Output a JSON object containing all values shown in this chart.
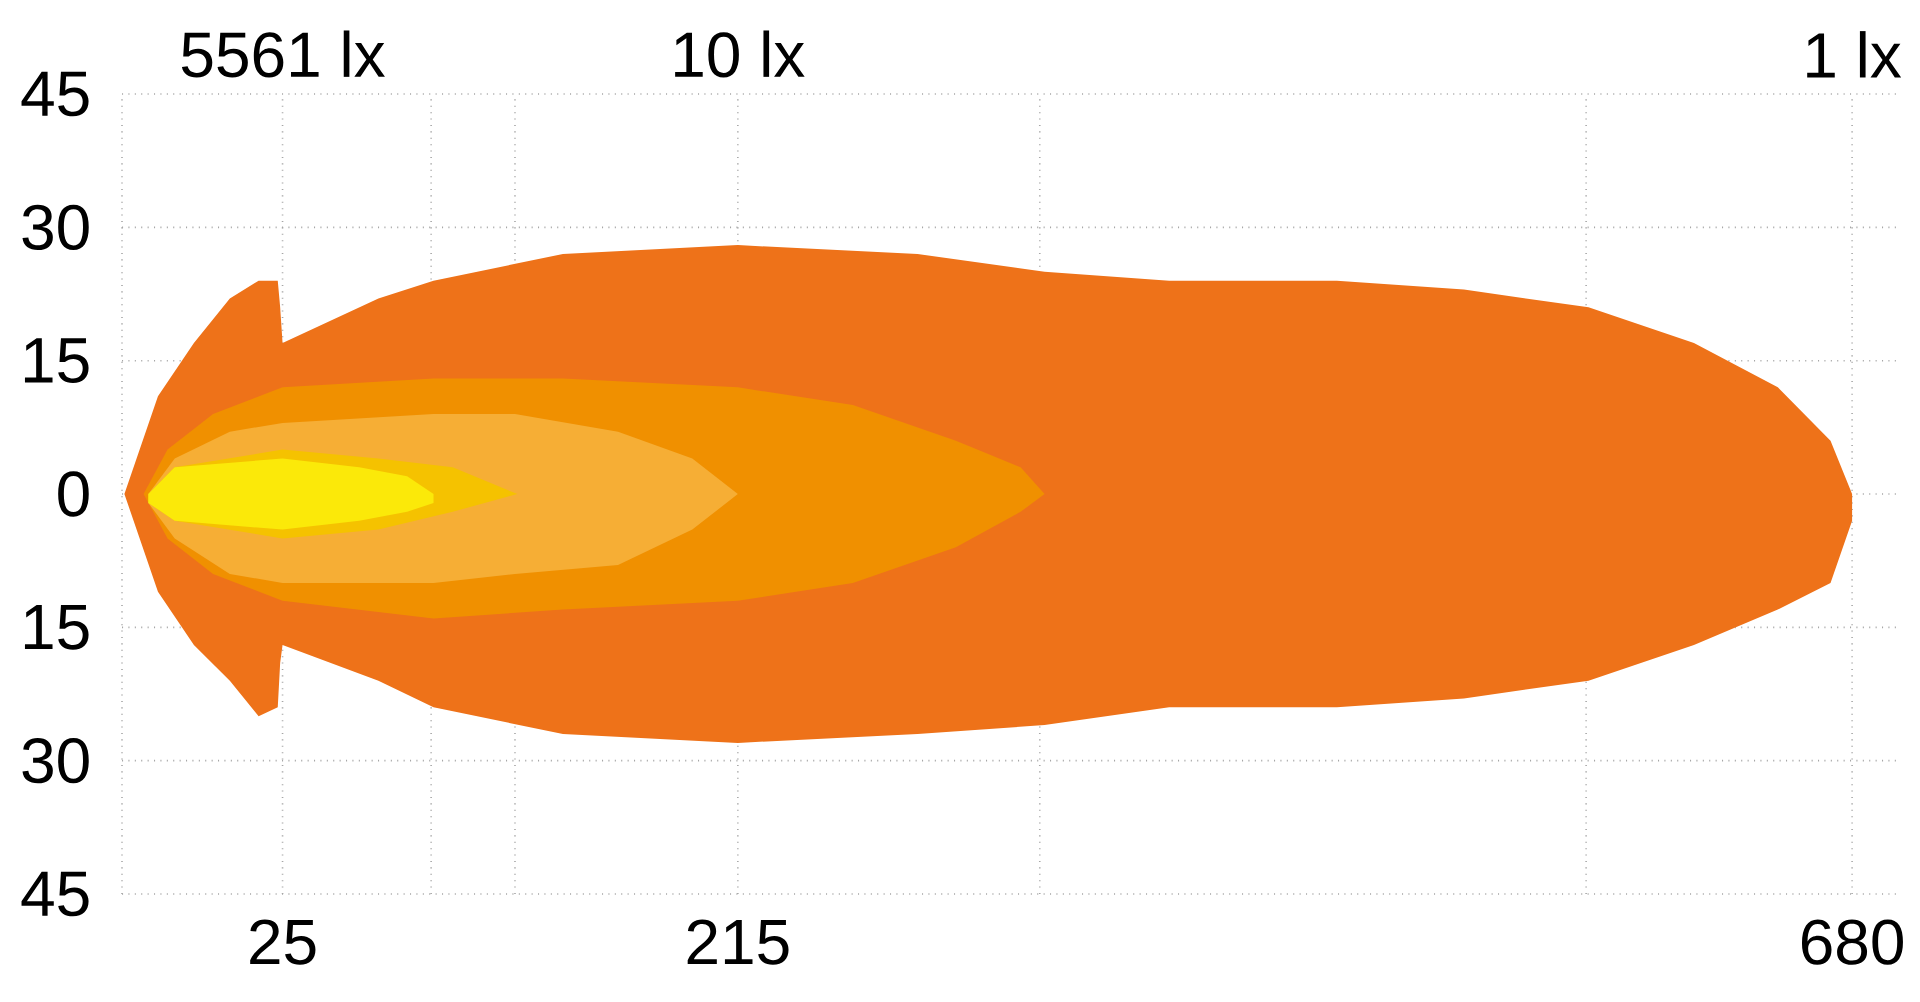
{
  "chart_data": {
    "type": "area",
    "xlim": [
      -42,
      700
    ],
    "ylim": [
      -45,
      45
    ],
    "xticks": [
      {
        "value": -42,
        "label": null
      },
      25,
      {
        "value": 87,
        "label": null
      },
      {
        "value": 122,
        "label": null
      },
      215,
      {
        "value": 341,
        "label": null
      },
      {
        "value": 569,
        "label": null
      },
      680
    ],
    "yticks": [
      {
        "value": -45,
        "label": "45"
      },
      {
        "value": -30,
        "label": "30"
      },
      {
        "value": -15,
        "label": "15"
      },
      0,
      15,
      30,
      45
    ],
    "annotations": [
      "5561 lx",
      "10 lx",
      "1 lx"
    ],
    "grid": true,
    "series": [
      {
        "color": "#ee7219",
        "x": [
          -41,
          -27,
          -12,
          3,
          15,
          23,
          24,
          25,
          65,
          88,
          142,
          215,
          290,
          343,
          395,
          430,
          465,
          518,
          570,
          614,
          649,
          671,
          680
        ],
        "values": [
          0,
          11,
          17,
          22,
          24,
          24,
          21,
          17,
          22,
          24,
          27,
          28,
          27,
          25,
          24,
          24,
          24,
          23,
          21,
          17,
          12,
          6,
          0
        ]
      },
      {
        "color": "#ee7219",
        "x": [
          -41,
          -27,
          -12,
          3,
          15,
          23,
          24,
          25,
          65,
          88,
          142,
          215,
          290,
          343,
          395,
          430,
          465,
          518,
          570,
          614,
          649,
          671,
          680
        ],
        "values": [
          0,
          -11,
          -17,
          -21,
          -25,
          -24,
          -19,
          -17,
          -21,
          -24,
          -27,
          -28,
          -27,
          -26,
          -24,
          -24,
          -24,
          -23,
          -21,
          -17,
          -13,
          -10,
          -3
        ]
      },
      {
        "color": "#f09000",
        "x": [
          -33,
          -23,
          -4,
          25,
          88,
          142,
          215,
          263,
          306,
          333,
          343
        ],
        "values": [
          0,
          5,
          9,
          12,
          13,
          13,
          12,
          10,
          6,
          3,
          0
        ]
      },
      {
        "color": "#f09000",
        "x": [
          -33,
          -23,
          -4,
          25,
          88,
          142,
          215,
          263,
          306,
          333,
          343
        ],
        "values": [
          0,
          -5,
          -9,
          -12,
          -14,
          -13,
          -12,
          -10,
          -6,
          -2,
          0
        ]
      },
      {
        "color": "#f6ae35",
        "x": [
          -31,
          -20,
          3,
          25,
          88,
          122,
          165,
          196,
          215
        ],
        "values": [
          0,
          4,
          7,
          8,
          9,
          9,
          7,
          4,
          0
        ]
      },
      {
        "color": "#f6ae35",
        "x": [
          -31,
          -20,
          3,
          25,
          88,
          122,
          165,
          196,
          215
        ],
        "values": [
          -1,
          -5,
          -9,
          -10,
          -10,
          -9,
          -8,
          -4,
          0
        ]
      },
      {
        "color": "#f5c200",
        "x": [
          -31,
          -20,
          25,
          65,
          96,
          123
        ],
        "values": [
          0,
          3,
          5,
          4,
          3,
          0
        ]
      },
      {
        "color": "#f5c200",
        "x": [
          -31,
          -20,
          25,
          65,
          96,
          123
        ],
        "values": [
          -1,
          -3,
          -5,
          -4,
          -2,
          0
        ]
      },
      {
        "color": "#fbe909",
        "x": [
          -31,
          -20,
          25,
          57,
          77,
          88
        ],
        "values": [
          0,
          3,
          4,
          3,
          2,
          0
        ]
      },
      {
        "color": "#fbe909",
        "x": [
          -31,
          -20,
          25,
          57,
          77,
          88
        ],
        "values": [
          -1,
          -3,
          -4,
          -3,
          -2,
          -1
        ]
      }
    ]
  }
}
